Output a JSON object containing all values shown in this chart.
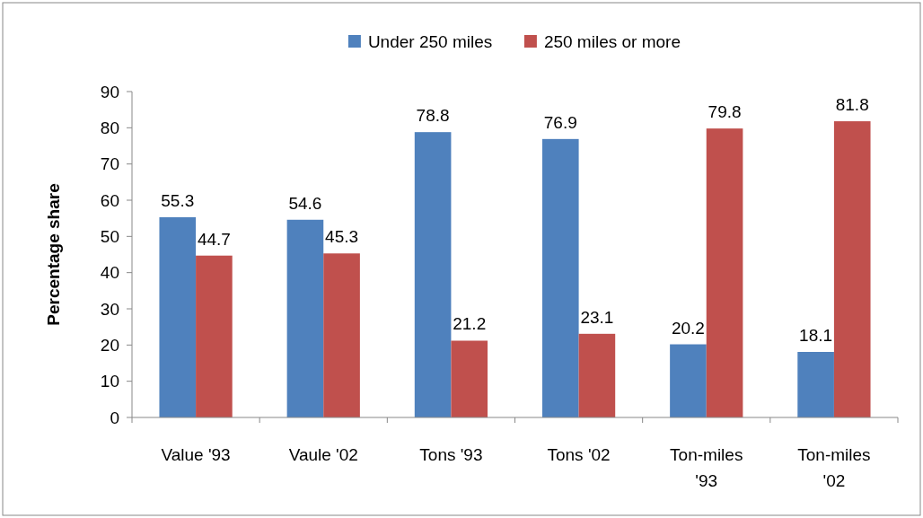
{
  "chart_data": {
    "type": "bar",
    "ylabel": "Percentage share",
    "categories": [
      "Value '93",
      "Vaule '02",
      "Tons '93",
      "Tons '02",
      "Ton-miles '93",
      "Ton-miles '02"
    ],
    "series": [
      {
        "name": "Under 250 miles",
        "color": "#4f81bd",
        "values": [
          55.3,
          54.6,
          78.8,
          76.9,
          20.2,
          18.1
        ]
      },
      {
        "name": "250 miles or more",
        "color": "#c0504d",
        "values": [
          44.7,
          45.3,
          21.2,
          23.1,
          79.8,
          81.8
        ]
      }
    ],
    "ylim": [
      0,
      90
    ],
    "yticks": [
      0,
      10,
      20,
      30,
      40,
      50,
      60,
      70,
      80,
      90
    ],
    "data_labels": true,
    "legend": "top",
    "grid": false
  }
}
